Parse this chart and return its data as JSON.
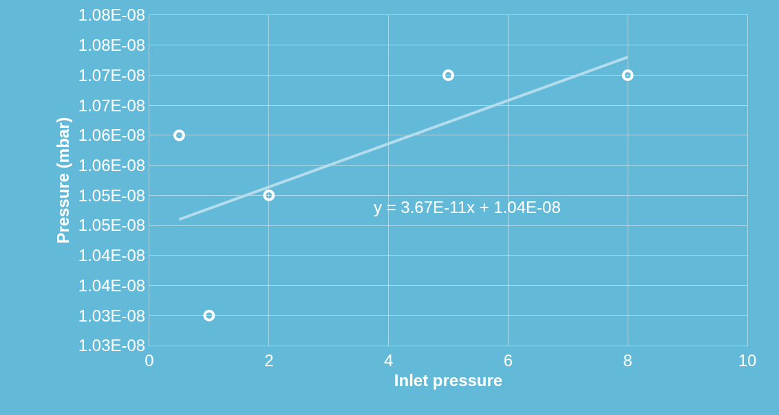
{
  "chart_data": {
    "type": "scatter",
    "xlabel": "Inlet pressure",
    "ylabel": "Pressure (mbar)",
    "series": [
      {
        "color": "#ffffff",
        "x": [
          0.5,
          1,
          2,
          5,
          8
        ],
        "values": [
          1.06e-08,
          1.03e-08,
          1.05e-08,
          1.07e-08,
          1.07e-08
        ]
      },
      {
        "type": "line",
        "marker": "none",
        "color": "#b3dcec",
        "x": [
          0.5,
          8
        ],
        "values": [
          1.046e-08,
          1.073e-08
        ]
      }
    ],
    "xlim": [
      0,
      10
    ],
    "xticks": [
      0,
      2,
      4,
      6,
      8,
      10
    ],
    "ylim": [
      1.025e-08,
      1.08e-08
    ],
    "yticks": [
      {
        "value": 1.025e-08,
        "label": "1.03E-08"
      },
      {
        "value": 1.03e-08,
        "label": "1.03E-08"
      },
      {
        "value": 1.035e-08,
        "label": "1.04E-08"
      },
      {
        "value": 1.04e-08,
        "label": "1.04E-08"
      },
      {
        "value": 1.045e-08,
        "label": "1.05E-08"
      },
      {
        "value": 1.05e-08,
        "label": "1.05E-08"
      },
      {
        "value": 1.055e-08,
        "label": "1.06E-08"
      },
      {
        "value": 1.06e-08,
        "label": "1.06E-08"
      },
      {
        "value": 1.065e-08,
        "label": "1.07E-08"
      },
      {
        "value": 1.07e-08,
        "label": "1.07E-08"
      },
      {
        "value": 1.075e-08,
        "label": "1.08E-08"
      },
      {
        "value": 1.08e-08,
        "label": "1.08E-08"
      }
    ],
    "annotations": [
      "y = 3.67E-11x + 1.04E-08"
    ],
    "grid": true,
    "marker": "circle"
  }
}
